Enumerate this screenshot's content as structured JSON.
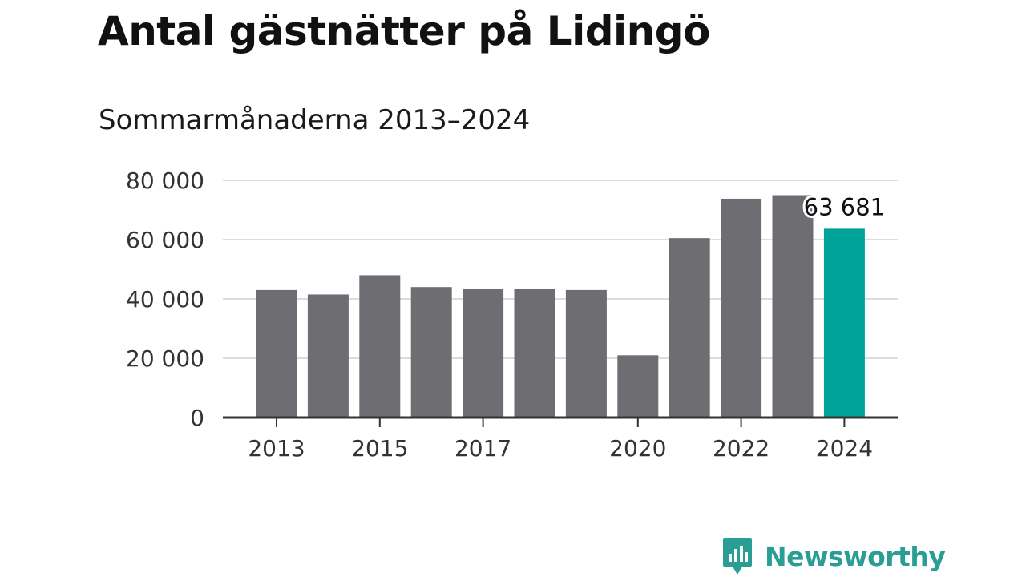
{
  "title": "Antal gästnätter på Lidingö",
  "subtitle": "Sommarmånaderna 2013–2024",
  "colors": {
    "bar": "#6e6d72",
    "highlight": "#00a39a",
    "grid": "#dcdcdc",
    "axis": "#333333",
    "brand": "#2a9d95"
  },
  "brand": {
    "name": "Newsworthy",
    "icon": "newsworthy-logo-icon"
  },
  "chart_data": {
    "type": "bar",
    "title": "Antal gästnätter på Lidingö",
    "subtitle": "Sommarmånaderna 2013–2024",
    "xlabel": "",
    "ylabel": "",
    "categories": [
      "2013",
      "2014",
      "2015",
      "2016",
      "2017",
      "2018",
      "2019",
      "2020",
      "2021",
      "2022",
      "2023",
      "2024"
    ],
    "values": [
      43000,
      41500,
      48000,
      44000,
      43500,
      43500,
      43000,
      21000,
      60500,
      73800,
      75000,
      63681
    ],
    "highlight_index": 11,
    "annotation": {
      "index": 11,
      "text": "63 681"
    },
    "x_tick_labels": [
      "2013",
      "2015",
      "2017",
      "2020",
      "2022",
      "2024"
    ],
    "x_tick_positions": [
      0,
      2,
      4,
      7,
      9,
      11
    ],
    "y_ticks": [
      0,
      20000,
      40000,
      60000,
      80000
    ],
    "y_tick_labels": [
      "0",
      "20 000",
      "40 000",
      "60 000",
      "80 000"
    ],
    "ylim": [
      0,
      80000
    ],
    "grid": true,
    "legend": "none"
  }
}
